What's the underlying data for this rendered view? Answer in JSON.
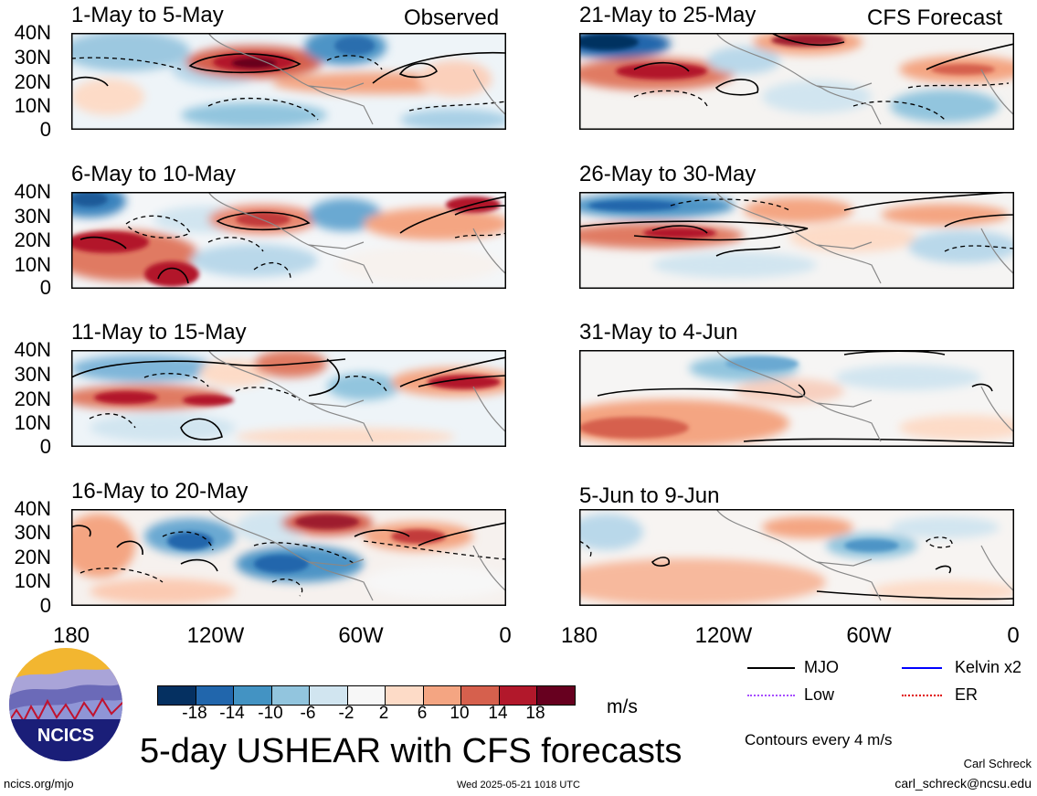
{
  "figure_title": "5-day USHEAR with CFS forecasts",
  "headers": {
    "observed": "Observed",
    "forecast": "CFS Forecast"
  },
  "panels": [
    {
      "label": "1-May to 5-May",
      "group": "observed"
    },
    {
      "label": "6-May to 10-May",
      "group": "observed"
    },
    {
      "label": "11-May to 15-May",
      "group": "observed"
    },
    {
      "label": "16-May to 20-May",
      "group": "observed"
    },
    {
      "label": "21-May to 25-May",
      "group": "forecast"
    },
    {
      "label": "26-May to 30-May",
      "group": "forecast"
    },
    {
      "label": "31-May to 4-Jun",
      "group": "forecast"
    },
    {
      "label": "5-Jun to 9-Jun",
      "group": "forecast"
    }
  ],
  "y_ticks": [
    "40N",
    "30N",
    "20N",
    "10N",
    "0"
  ],
  "x_ticks": [
    "180",
    "120W",
    "60W",
    "0"
  ],
  "colorbar": {
    "ticks": [
      "-18",
      "-14",
      "-10",
      "-6",
      "-2",
      "2",
      "6",
      "10",
      "14",
      "18"
    ],
    "unit": "m/s",
    "colors": [
      "#053061",
      "#2166ac",
      "#4393c3",
      "#92c5de",
      "#d1e5f0",
      "#f7f7f7",
      "#fddbc7",
      "#f4a582",
      "#d6604d",
      "#b2182b",
      "#67001f"
    ]
  },
  "legend": {
    "items": [
      {
        "label": "MJO",
        "color": "#000000"
      },
      {
        "label": "Kelvin x2",
        "color": "#0000ff"
      },
      {
        "label": "Low",
        "color": "#a64dff"
      },
      {
        "label": "ER",
        "color": "#e00000"
      }
    ],
    "contour_note": "Contours every 4 m/s"
  },
  "logo_text": "NCICS",
  "footer": {
    "left": "ncics.org/mjo",
    "center": "Wed 2025-05-21 1018 UTC",
    "author": "Carl Schreck",
    "email": "carl_schreck@ncsu.edu"
  }
}
